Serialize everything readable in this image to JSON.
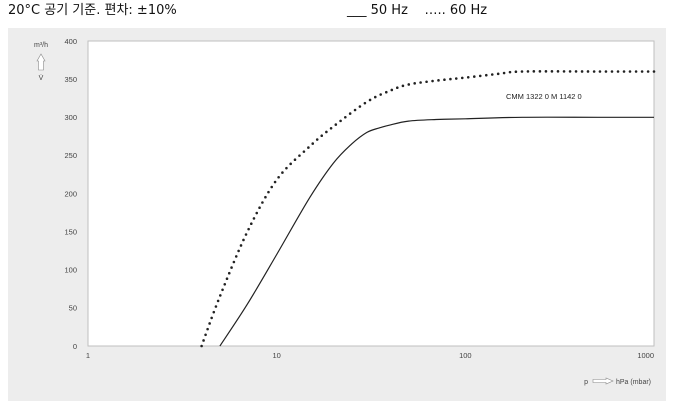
{
  "caption": {
    "note": "20°C 공기 기준. 편차: ±10%",
    "legend_50": "___ 50 Hz",
    "legend_60": "….. 60 Hz"
  },
  "chart_data": {
    "type": "line",
    "ylabel": "m³/h",
    "ylabel_symbol": "V̇",
    "xlabel": "hPa (mbar)",
    "xlabel_symbol": "p",
    "annotation": "CMM 1322 0 M 1142 0",
    "xscale": "log",
    "xlim": [
      1,
      1000
    ],
    "ylim": [
      0,
      400
    ],
    "xticks": [
      1,
      10,
      100,
      1000
    ],
    "xtick_labels": [
      "1",
      "10",
      "100",
      "1000"
    ],
    "yticks": [
      0,
      50,
      100,
      150,
      200,
      250,
      300,
      350,
      400
    ],
    "ytick_labels": [
      "0",
      "50",
      "100",
      "150",
      "200",
      "250",
      "300",
      "350",
      "400"
    ],
    "grid": true,
    "series": [
      {
        "name": "50 Hz",
        "style": "solid",
        "color": "#222222",
        "x": [
          5,
          7,
          10,
          15,
          20,
          25,
          30,
          35,
          40,
          50,
          70,
          100,
          200,
          500,
          1000
        ],
        "y": [
          0,
          55,
          120,
          195,
          240,
          265,
          280,
          286,
          290,
          295,
          297,
          298,
          300,
          300,
          300
        ]
      },
      {
        "name": "60 Hz",
        "style": "dotted",
        "color": "#222222",
        "x": [
          4,
          5,
          7,
          10,
          15,
          20,
          30,
          40,
          50,
          70,
          100,
          150,
          200,
          500,
          1000
        ],
        "y": [
          0,
          65,
          150,
          218,
          262,
          288,
          320,
          335,
          343,
          348,
          352,
          357,
          360,
          360,
          360
        ]
      }
    ]
  }
}
